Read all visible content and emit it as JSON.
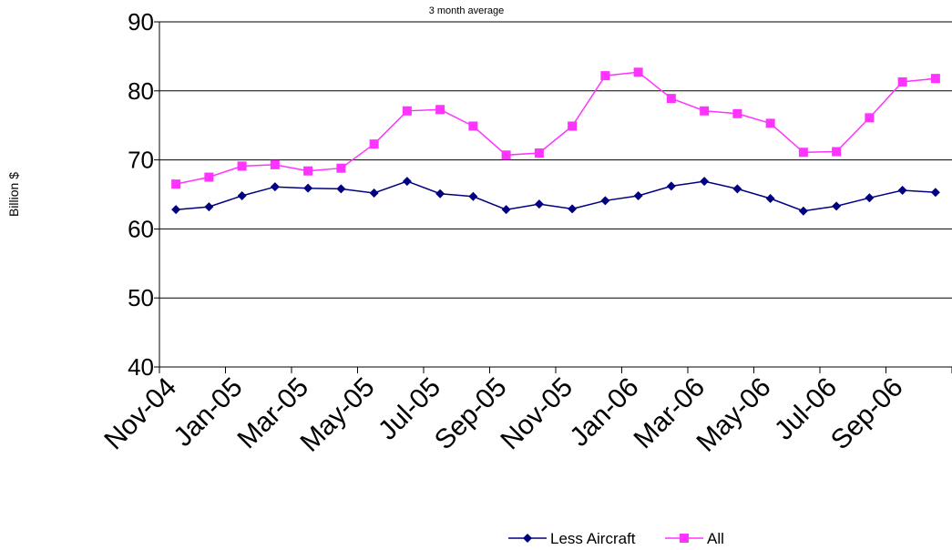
{
  "chart_data": {
    "type": "line",
    "subtitle": "3 month average",
    "ylabel": "Billion $",
    "ylim": [
      40,
      90
    ],
    "yticks": [
      40,
      50,
      60,
      70,
      80,
      90
    ],
    "grid": true,
    "legend_position": "bottom",
    "x": [
      "Nov-04",
      "Dec-04",
      "Jan-05",
      "Feb-05",
      "Mar-05",
      "Apr-05",
      "May-05",
      "Jun-05",
      "Jul-05",
      "Aug-05",
      "Sep-05",
      "Oct-05",
      "Nov-05",
      "Dec-05",
      "Jan-06",
      "Feb-06",
      "Mar-06",
      "Apr-06",
      "May-06",
      "Jun-06",
      "Jul-06",
      "Aug-06",
      "Sep-06",
      "Oct-06"
    ],
    "xtick_labels": [
      "Nov-04",
      "Jan-05",
      "Mar-05",
      "May-05",
      "Jul-05",
      "Sep-05",
      "Nov-05",
      "Jan-06",
      "Mar-06",
      "May-06",
      "Jul-06",
      "Sep-06"
    ],
    "series": [
      {
        "name": "Less Aircraft",
        "color": "#000080",
        "marker": "diamond",
        "values": [
          62.8,
          63.2,
          64.8,
          66.1,
          65.9,
          65.8,
          65.2,
          66.9,
          65.1,
          64.7,
          62.8,
          63.6,
          62.9,
          64.1,
          64.8,
          66.2,
          66.9,
          65.8,
          64.4,
          62.6,
          63.3,
          64.5,
          65.6,
          65.3
        ]
      },
      {
        "name": "All",
        "color": "#FF33FF",
        "marker": "square",
        "values": [
          66.5,
          67.5,
          69.1,
          69.3,
          68.4,
          68.8,
          72.3,
          77.1,
          77.3,
          74.9,
          70.7,
          71.0,
          74.9,
          82.2,
          82.7,
          78.9,
          77.1,
          76.7,
          75.3,
          71.1,
          71.2,
          76.1,
          81.3,
          81.8
        ]
      }
    ]
  }
}
